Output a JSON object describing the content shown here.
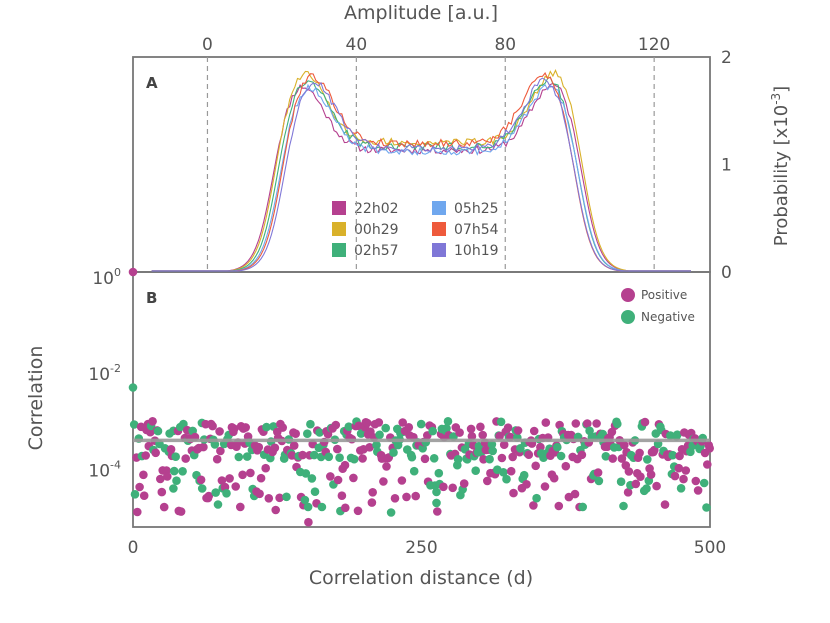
{
  "chart_data": [
    {
      "panel": "A",
      "type": "line",
      "title": "",
      "xlabel": "Amplitude [a.u.]",
      "ylabel": "Probability [x10",
      "ylabel_exponent": "-3",
      "ylabel_close": "]",
      "xlim": [
        -20,
        135
      ],
      "ylim": [
        0,
        2.0
      ],
      "xticks": [
        "0",
        "40",
        "80",
        "120"
      ],
      "xtick_values": [
        0,
        40,
        80,
        120
      ],
      "yticks": [
        "0",
        "1",
        "2"
      ],
      "ytick_values": [
        0,
        1,
        2
      ],
      "dashed_lines_at": [
        0,
        40,
        80,
        120
      ],
      "series": [
        {
          "name": "22h02",
          "color": "#b5408f"
        },
        {
          "name": "00h29",
          "color": "#d9b12a"
        },
        {
          "name": "02h57",
          "color": "#3fb07a"
        },
        {
          "name": "05h25",
          "color": "#6fa7ee"
        },
        {
          "name": "07h54",
          "color": "#ee5a3c"
        },
        {
          "name": "10h19",
          "color": "#7f77d7"
        }
      ],
      "series_shape": {
        "rise_center": [
          17,
          20
        ],
        "fall_center": [
          99,
          102
        ],
        "peak_left": 1.8,
        "peak_right": 1.82,
        "valley": 1.15
      }
    },
    {
      "panel": "B",
      "type": "scatter",
      "title": "",
      "xlabel": "Correlation distance (d)",
      "ylabel": "Correlation",
      "xlim": [
        0,
        500
      ],
      "ylim_log10": [
        -5.3,
        0
      ],
      "xticks": [
        "0",
        "250",
        "500"
      ],
      "xtick_values": [
        0,
        250,
        500
      ],
      "yticks": [
        {
          "base": "10",
          "exp": "0",
          "value": 0
        },
        {
          "base": "10",
          "exp": "-2",
          "value": -2
        },
        {
          "base": "10",
          "exp": "-4",
          "value": -4
        }
      ],
      "mean_line_log10": -3.5,
      "series": [
        {
          "name": "Positive",
          "color": "#b5408f"
        },
        {
          "name": "Negative",
          "color": "#3fb07a"
        }
      ],
      "outliers": [
        {
          "x": 0,
          "log10": 0,
          "series": "Positive"
        },
        {
          "x": 0,
          "log10": -2.4,
          "series": "Negative"
        },
        {
          "x": 152,
          "log10": -5.2,
          "series": "Positive"
        },
        {
          "x": 184,
          "log10": -4.9,
          "series": "Positive"
        },
        {
          "x": 263,
          "log10": -4.8,
          "series": "Negative"
        },
        {
          "x": 35,
          "log10": -4.5,
          "series": "Negative"
        },
        {
          "x": 60,
          "log10": -4.5,
          "series": "Negative"
        }
      ],
      "scatter_spec": {
        "count": 250,
        "x_step": 2,
        "seed": 7
      }
    }
  ],
  "panel_labels": {
    "a": "A",
    "b": "B"
  }
}
